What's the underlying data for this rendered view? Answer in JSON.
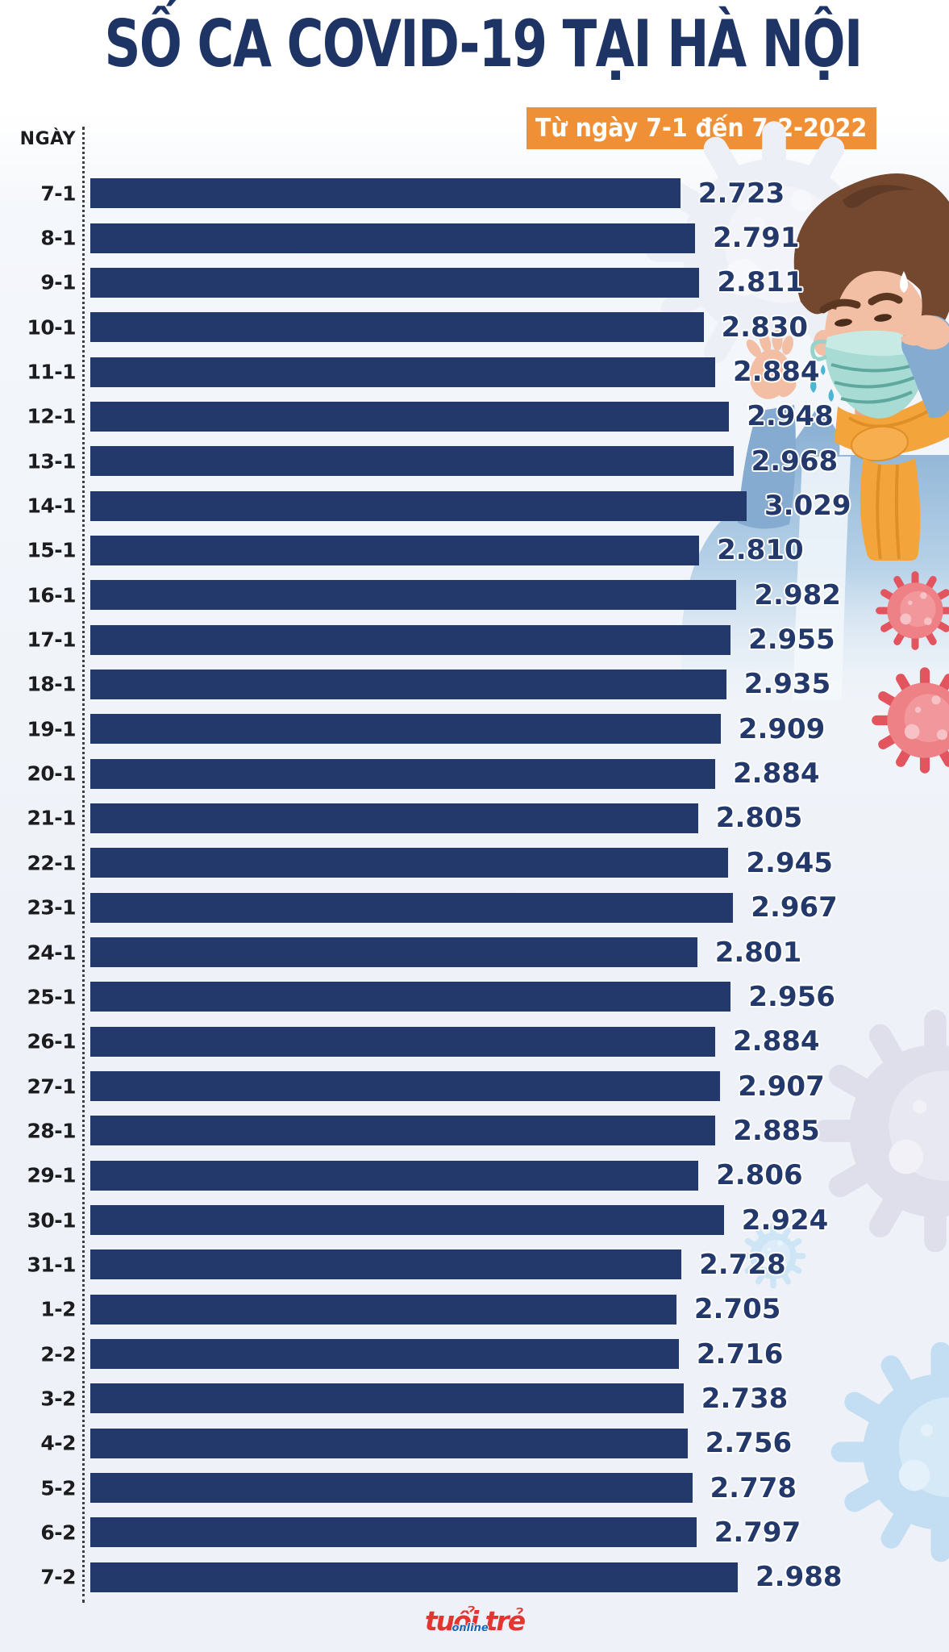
{
  "title": "SỐ CA COVID-19 TẠI HÀ NỘI",
  "subtitle": "Từ ngày 7-1 đến 7-2-2022",
  "axis_label": "NGÀY",
  "logo": {
    "main": "tuổi trẻ",
    "online": "online"
  },
  "colors": {
    "bar": "#24396b",
    "title_text": "#1e3464",
    "subtitle_bg": "#ef9036",
    "subtitle_text": "#ffffff",
    "value_text": "#24396b",
    "date_text": "#1c1c1e",
    "logo_red": "#e43531",
    "logo_blue": "#1466b8"
  },
  "chart_data": {
    "type": "bar",
    "orientation": "horizontal",
    "title": "SỐ CA COVID-19 TẠI HÀ NỘI",
    "subtitle": "Từ ngày 7-1 đến 7-2-2022",
    "ylabel": "NGÀY",
    "xlabel": "",
    "xlim": [
      0,
      3029
    ],
    "grid": false,
    "legend": false,
    "categories": [
      "7-1",
      "8-1",
      "9-1",
      "10-1",
      "11-1",
      "12-1",
      "13-1",
      "14-1",
      "15-1",
      "16-1",
      "17-1",
      "18-1",
      "19-1",
      "20-1",
      "21-1",
      "22-1",
      "23-1",
      "24-1",
      "25-1",
      "26-1",
      "27-1",
      "28-1",
      "29-1",
      "30-1",
      "31-1",
      "1-2",
      "2-2",
      "3-2",
      "4-2",
      "5-2",
      "6-2",
      "7-2"
    ],
    "values": [
      2723,
      2791,
      2811,
      2830,
      2884,
      2948,
      2968,
      3029,
      2810,
      2982,
      2955,
      2935,
      2909,
      2884,
      2805,
      2945,
      2967,
      2801,
      2956,
      2884,
      2907,
      2885,
      2806,
      2924,
      2728,
      2705,
      2716,
      2738,
      2756,
      2778,
      2797,
      2988
    ],
    "value_labels": [
      "2.723",
      "2.791",
      "2.811",
      "2.830",
      "2.884",
      "2.948",
      "2.968",
      "3.029",
      "2.810",
      "2.982",
      "2.955",
      "2.935",
      "2.909",
      "2.884",
      "2.805",
      "2.945",
      "2.967",
      "2.801",
      "2.956",
      "2.884",
      "2.907",
      "2.885",
      "2.806",
      "2.924",
      "2.728",
      "2.705",
      "2.716",
      "2.738",
      "2.756",
      "2.778",
      "2.797",
      "2.988"
    ]
  }
}
